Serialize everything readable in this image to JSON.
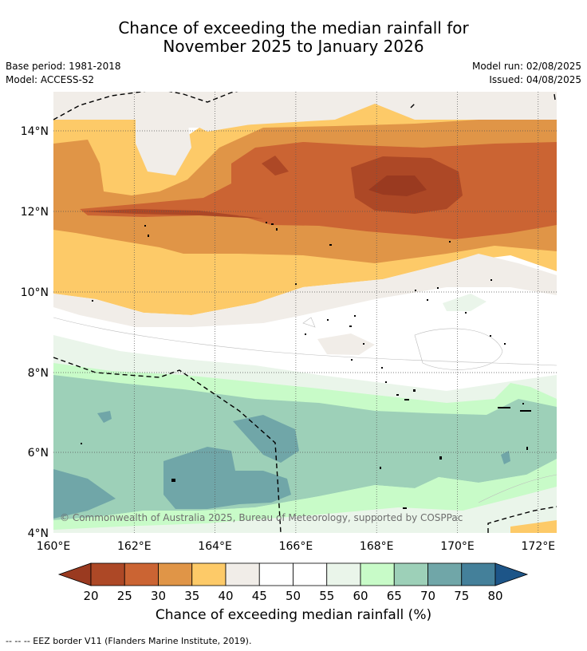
{
  "header": {
    "title_line1": "Chance of exceeding the median rainfall for",
    "title_line2": "November 2025 to January 2026",
    "base_period": "Base period: 1981-2018",
    "model": "Model: ACCESS-S2",
    "model_run": "Model run: 02/08/2025",
    "issued": "Issued: 04/08/2025"
  },
  "map": {
    "lon_labels": [
      "160°E",
      "162°E",
      "164°E",
      "166°E",
      "168°E",
      "170°E",
      "172°E"
    ],
    "lat_labels": [
      "14°N",
      "12°N",
      "10°N",
      "8°N",
      "6°N",
      "4°N"
    ],
    "lon_range": [
      160,
      172.5
    ],
    "lat_range": [
      4,
      15
    ],
    "copyright": "© Commonwealth of Australia 2025, Bureau of Meteorology, supported by COSPPac"
  },
  "colorbar": {
    "ticks": [
      "20",
      "25",
      "30",
      "35",
      "40",
      "45",
      "50",
      "55",
      "60",
      "65",
      "70",
      "75",
      "80"
    ],
    "colors": [
      "#ad4826",
      "#cb6433",
      "#e09547",
      "#fdca68",
      "#f1ede8",
      "#ffffff",
      "#ffffff",
      "#eaf5ea",
      "#c8fbc8",
      "#9dd0b8",
      "#70a6a8",
      "#44809a"
    ],
    "low_color": "#9a3a20",
    "high_color": "#1d5588",
    "label": "Chance of exceeding median rainfall (%)"
  },
  "footer": {
    "legend_text": "--  --  -- EEZ border V11 (Flanders Marine Institute, 2019)."
  }
}
